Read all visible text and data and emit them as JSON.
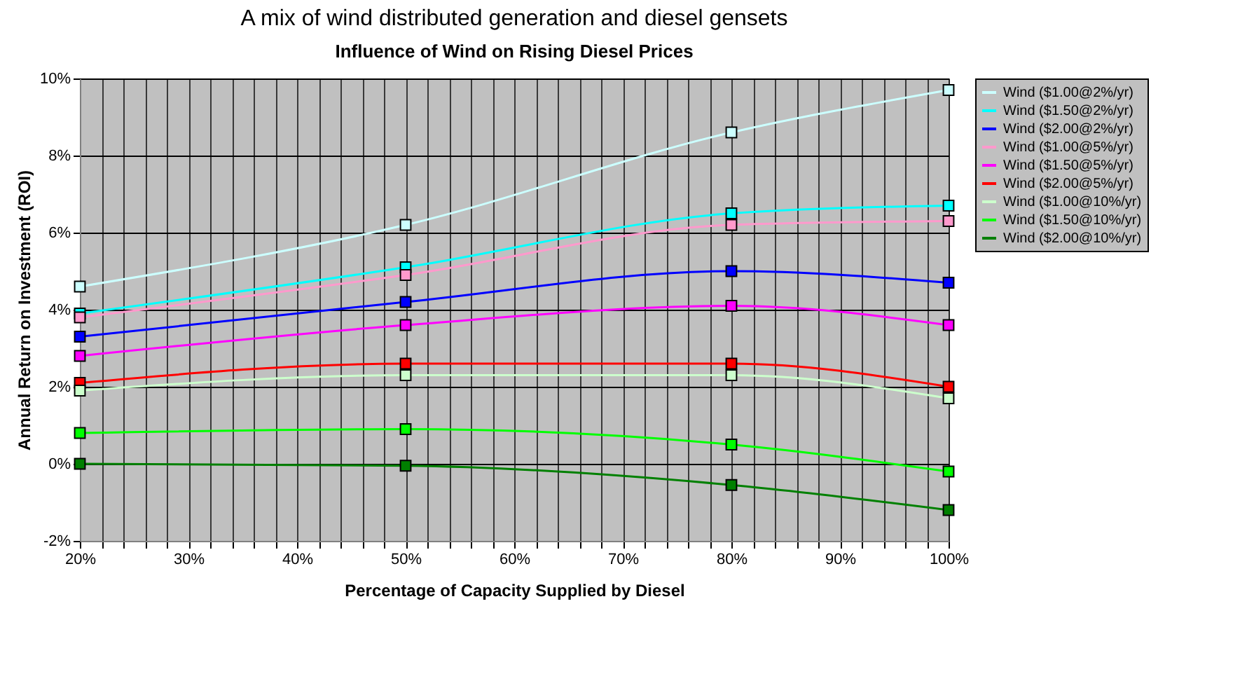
{
  "chart_data": {
    "type": "line",
    "title": "A mix of wind distributed generation and diesel gensets",
    "subtitle": "Influence of Wind on Rising Diesel Prices",
    "xlabel": "Percentage of Capacity Supplied by Diesel",
    "ylabel": "Annual Return on Investment (ROI)",
    "x": [
      20,
      50,
      80,
      100
    ],
    "xlim": [
      20,
      100
    ],
    "xticks": [
      {
        "value": 20,
        "label": "20%"
      },
      {
        "value": 22,
        "label": null
      },
      {
        "value": 24,
        "label": null
      },
      {
        "value": 26,
        "label": null
      },
      {
        "value": 28,
        "label": null
      },
      {
        "value": 30,
        "label": "30%"
      },
      {
        "value": 32,
        "label": null
      },
      {
        "value": 34,
        "label": null
      },
      {
        "value": 36,
        "label": null
      },
      {
        "value": 38,
        "label": null
      },
      {
        "value": 40,
        "label": "40%"
      },
      {
        "value": 42,
        "label": null
      },
      {
        "value": 44,
        "label": null
      },
      {
        "value": 46,
        "label": null
      },
      {
        "value": 48,
        "label": null
      },
      {
        "value": 50,
        "label": "50%"
      },
      {
        "value": 52,
        "label": null
      },
      {
        "value": 54,
        "label": null
      },
      {
        "value": 56,
        "label": null
      },
      {
        "value": 58,
        "label": null
      },
      {
        "value": 60,
        "label": "60%"
      },
      {
        "value": 62,
        "label": null
      },
      {
        "value": 64,
        "label": null
      },
      {
        "value": 66,
        "label": null
      },
      {
        "value": 68,
        "label": null
      },
      {
        "value": 70,
        "label": "70%"
      },
      {
        "value": 72,
        "label": null
      },
      {
        "value": 74,
        "label": null
      },
      {
        "value": 76,
        "label": null
      },
      {
        "value": 78,
        "label": null
      },
      {
        "value": 80,
        "label": "80%"
      },
      {
        "value": 82,
        "label": null
      },
      {
        "value": 84,
        "label": null
      },
      {
        "value": 86,
        "label": null
      },
      {
        "value": 88,
        "label": null
      },
      {
        "value": 90,
        "label": "90%"
      },
      {
        "value": 92,
        "label": null
      },
      {
        "value": 94,
        "label": null
      },
      {
        "value": 96,
        "label": null
      },
      {
        "value": 98,
        "label": null
      },
      {
        "value": 100,
        "label": "100%"
      }
    ],
    "ylim": [
      -2,
      10
    ],
    "yticks": [
      {
        "value": -2,
        "label": "-2%"
      },
      {
        "value": 0,
        "label": "0%"
      },
      {
        "value": 2,
        "label": "2%"
      },
      {
        "value": 4,
        "label": "4%"
      },
      {
        "value": 6,
        "label": "6%"
      },
      {
        "value": 8,
        "label": "8%"
      },
      {
        "value": 10,
        "label": "10%"
      }
    ],
    "grid": true,
    "legend": "right",
    "marker": "square",
    "line_style": "solid",
    "series": [
      {
        "name": "Wind ($1.00@2%/yr)",
        "color": "#ccffff",
        "values": [
          4.6,
          6.2,
          8.6,
          9.7
        ]
      },
      {
        "name": "Wind ($1.50@2%/yr)",
        "color": "#00ffff",
        "values": [
          3.9,
          5.1,
          6.5,
          6.7
        ]
      },
      {
        "name": "Wind ($2.00@2%/yr)",
        "color": "#0000ff",
        "values": [
          3.3,
          4.2,
          5.0,
          4.7
        ]
      },
      {
        "name": "Wind ($1.00@5%/yr)",
        "color": "#ff99cc",
        "values": [
          3.8,
          4.9,
          6.2,
          6.3
        ]
      },
      {
        "name": "Wind ($1.50@5%/yr)",
        "color": "#ff00ff",
        "values": [
          2.8,
          3.6,
          4.1,
          3.6
        ]
      },
      {
        "name": "Wind ($2.00@5%/yr)",
        "color": "#ff0000",
        "values": [
          2.1,
          2.6,
          2.6,
          2.0
        ]
      },
      {
        "name": "Wind ($1.00@10%/yr)",
        "color": "#ccffcc",
        "values": [
          1.9,
          2.3,
          2.3,
          1.7
        ]
      },
      {
        "name": "Wind ($1.50@10%/yr)",
        "color": "#00ff00",
        "values": [
          0.8,
          0.9,
          0.5,
          -0.2
        ]
      },
      {
        "name": "Wind ($2.00@10%/yr)",
        "color": "#008000",
        "values": [
          0.0,
          -0.05,
          -0.55,
          -1.2
        ]
      }
    ]
  }
}
